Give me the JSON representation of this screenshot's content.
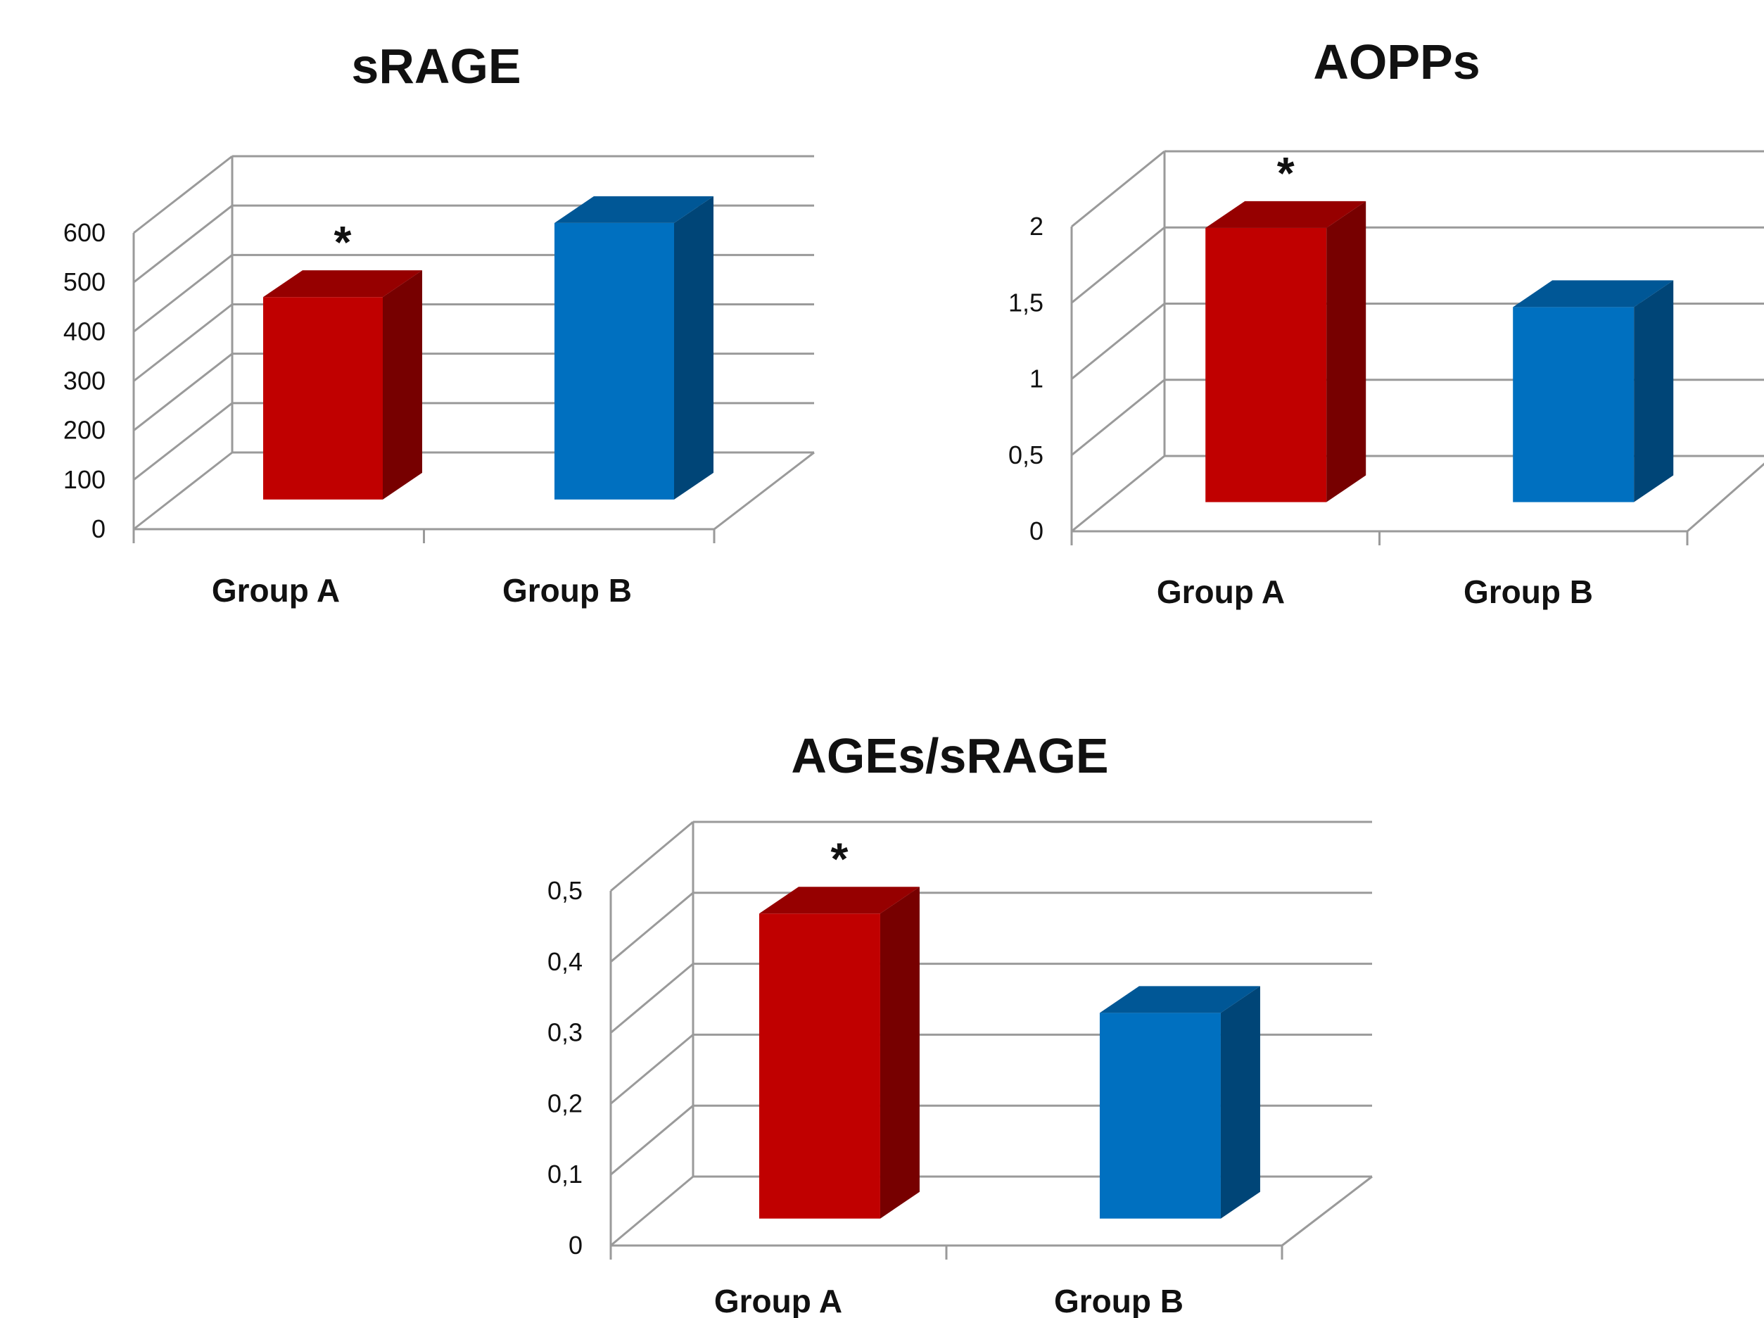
{
  "chart_data": [
    {
      "type": "bar",
      "title": "sRAGE",
      "categories": [
        "Group A",
        "Group B"
      ],
      "values": [
        410,
        560
      ],
      "colors": [
        "#c00000",
        "#0070c0"
      ],
      "ylim": [
        0,
        600
      ],
      "yticks": [
        0,
        100,
        200,
        300,
        400,
        500,
        600
      ],
      "ytick_labels": [
        "0",
        "100",
        "200",
        "300",
        "400",
        "500",
        "600"
      ],
      "grid": true,
      "annotations": [
        {
          "category": "Group A",
          "text": "*"
        }
      ]
    },
    {
      "type": "bar",
      "title": "AOPPs",
      "categories": [
        "Group A",
        "Group B"
      ],
      "values": [
        1.8,
        1.28
      ],
      "colors": [
        "#c00000",
        "#0070c0"
      ],
      "ylim": [
        0,
        2
      ],
      "yticks": [
        0,
        0.5,
        1,
        1.5,
        2
      ],
      "ytick_labels": [
        "0",
        "0,5",
        "1",
        "1,5",
        "2"
      ],
      "grid": true,
      "annotations": [
        {
          "category": "Group A",
          "text": "*"
        }
      ]
    },
    {
      "type": "bar",
      "title": "AGEs/sRAGE",
      "categories": [
        "Group A",
        "Group B"
      ],
      "values": [
        0.43,
        0.29
      ],
      "colors": [
        "#c00000",
        "#0070c0"
      ],
      "ylim": [
        0,
        0.5
      ],
      "yticks": [
        0,
        0.1,
        0.2,
        0.3,
        0.4,
        0.5
      ],
      "ytick_labels": [
        "0",
        "0,1",
        "0,2",
        "0,3",
        "0,4",
        "0,5"
      ],
      "grid": true,
      "annotations": [
        {
          "category": "Group A",
          "text": "*"
        }
      ]
    }
  ]
}
